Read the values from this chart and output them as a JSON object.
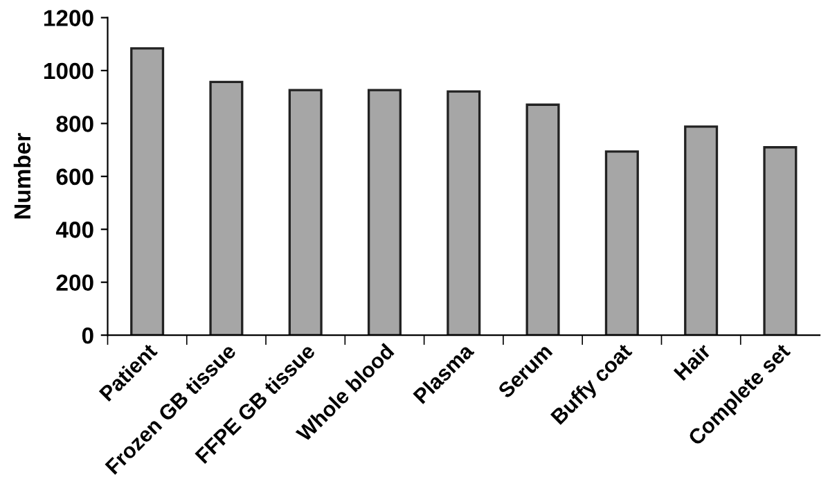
{
  "chart_data": {
    "type": "bar",
    "ylabel": "Number",
    "categories": [
      "Patient",
      "Frozen GB tissue",
      "FFPE GB tissue",
      "Whole blood",
      "Plasma",
      "Serum",
      "Buffy coat",
      "Hair",
      "Complete set"
    ],
    "values": [
      1084,
      957,
      926,
      926,
      921,
      871,
      694,
      788,
      710
    ],
    "color": "#a6a6a6",
    "ylim": [
      0,
      1200
    ],
    "yticks": [
      0,
      200,
      400,
      600,
      800,
      1000,
      1200
    ],
    "grid": false,
    "legend": false
  }
}
